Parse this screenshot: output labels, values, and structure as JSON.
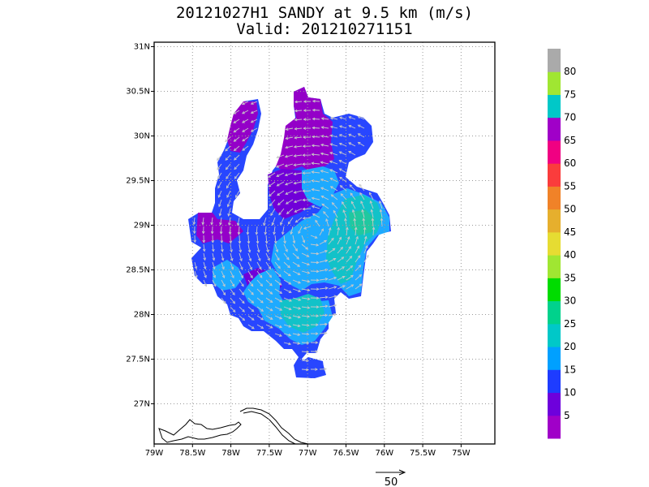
{
  "title": {
    "line1": "20121027H1 SANDY at 9.5 km (m/s)",
    "line2": "Valid: 201210271151"
  },
  "map": {
    "lon_range": [
      -79.0,
      -74.56
    ],
    "lat_range": [
      26.55,
      31.05
    ],
    "x_ticks": [
      {
        "value": -79.0,
        "label": "79W"
      },
      {
        "value": -78.5,
        "label": "78.5W"
      },
      {
        "value": -78.0,
        "label": "78W"
      },
      {
        "value": -77.5,
        "label": "77.5W"
      },
      {
        "value": -77.0,
        "label": "77W"
      },
      {
        "value": -76.5,
        "label": "76.5W"
      },
      {
        "value": -76.0,
        "label": "76W"
      },
      {
        "value": -75.5,
        "label": "75.5W"
      },
      {
        "value": -75.0,
        "label": "75W"
      }
    ],
    "y_ticks": [
      {
        "value": 31.0,
        "label": "31N"
      },
      {
        "value": 30.5,
        "label": "30.5N"
      },
      {
        "value": 30.0,
        "label": "30N"
      },
      {
        "value": 29.5,
        "label": "29.5N"
      },
      {
        "value": 29.0,
        "label": "29N"
      },
      {
        "value": 28.5,
        "label": "28.5N"
      },
      {
        "value": 28.0,
        "label": "28N"
      },
      {
        "value": 27.5,
        "label": "27.5N"
      },
      {
        "value": 27.0,
        "label": "27N"
      }
    ],
    "grid": true
  },
  "colorbar": {
    "colors": [
      "#a000c8",
      "#6e00dc",
      "#1e3cff",
      "#00a0ff",
      "#00c8c8",
      "#00d28c",
      "#00dc00",
      "#a0e632",
      "#e6dc32",
      "#e6af2d",
      "#f08228",
      "#fa3c3c",
      "#f00082",
      "#a000c8",
      "#00c8c8",
      "#a0e632",
      "#aaaaaa"
    ],
    "labels": [
      "5",
      "10",
      "15",
      "20",
      "25",
      "30",
      "35",
      "40",
      "45",
      "50",
      "55",
      "60",
      "65",
      "70",
      "75",
      "80"
    ]
  },
  "scale_arrow": {
    "label": "50"
  }
}
